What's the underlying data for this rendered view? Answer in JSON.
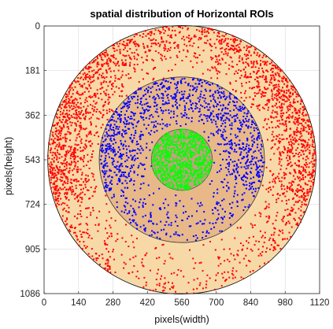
{
  "chart_data": {
    "type": "scatter",
    "title": "spatial distribution of Horizontal ROIs",
    "xlabel": "pixels(width)",
    "ylabel": "pixels(height)",
    "xlim": [
      0,
      1120
    ],
    "ylim": [
      0,
      1086
    ],
    "y_reversed": true,
    "grid": true,
    "xticks": [
      "0",
      "140",
      "280",
      "420",
      "560",
      "700",
      "840",
      "980",
      "1120"
    ],
    "yticks": [
      "0",
      "181",
      "362",
      "543",
      "724",
      "905",
      "1086"
    ],
    "regions": [
      {
        "shape": "circle",
        "cx": 560,
        "cy": 543,
        "r": 545,
        "fill": "#f7d9a8",
        "stroke": "#000000"
      },
      {
        "shape": "circle",
        "cx": 560,
        "cy": 543,
        "r": 336,
        "fill": "#e8b888",
        "stroke": "#333333"
      },
      {
        "shape": "circle",
        "cx": 560,
        "cy": 543,
        "r": 124,
        "fill": "#c99e82",
        "stroke": "#555555"
      }
    ],
    "series": [
      {
        "color": "#ff0000",
        "zone": "outer ring",
        "r_range": [
          336,
          545
        ],
        "approx_points": 2600
      },
      {
        "color": "#0000ff",
        "zone": "middle ring",
        "r_range": [
          124,
          336
        ],
        "approx_points": 1400
      },
      {
        "color": "#00ff00",
        "zone": "inner disk",
        "r_range": [
          0,
          124
        ],
        "approx_points": 900
      }
    ]
  }
}
